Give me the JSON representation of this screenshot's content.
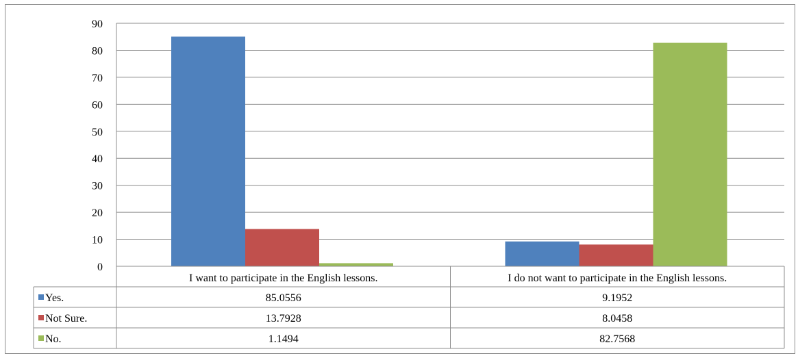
{
  "chart_data": {
    "type": "bar",
    "categories": [
      "I want to participate in the English lessons.",
      "I do not want to participate in the English lessons."
    ],
    "series": [
      {
        "name": "Yes.",
        "color": "#4f81bd",
        "values": [
          85.0556,
          9.1952
        ],
        "labels": [
          "85.0556",
          "9.1952"
        ]
      },
      {
        "name": "Not Sure.",
        "color": "#c0504d",
        "values": [
          13.7928,
          8.0458
        ],
        "labels": [
          "13.7928",
          "8.0458"
        ]
      },
      {
        "name": "No.",
        "color": "#9bbb59",
        "values": [
          1.1494,
          82.7568
        ],
        "labels": [
          "1.1494",
          "82.7568"
        ]
      }
    ],
    "ylim": [
      0,
      90
    ],
    "yticks": [
      0,
      10,
      20,
      30,
      40,
      50,
      60,
      70,
      80,
      90
    ],
    "grid": true,
    "legend": "data-table"
  }
}
